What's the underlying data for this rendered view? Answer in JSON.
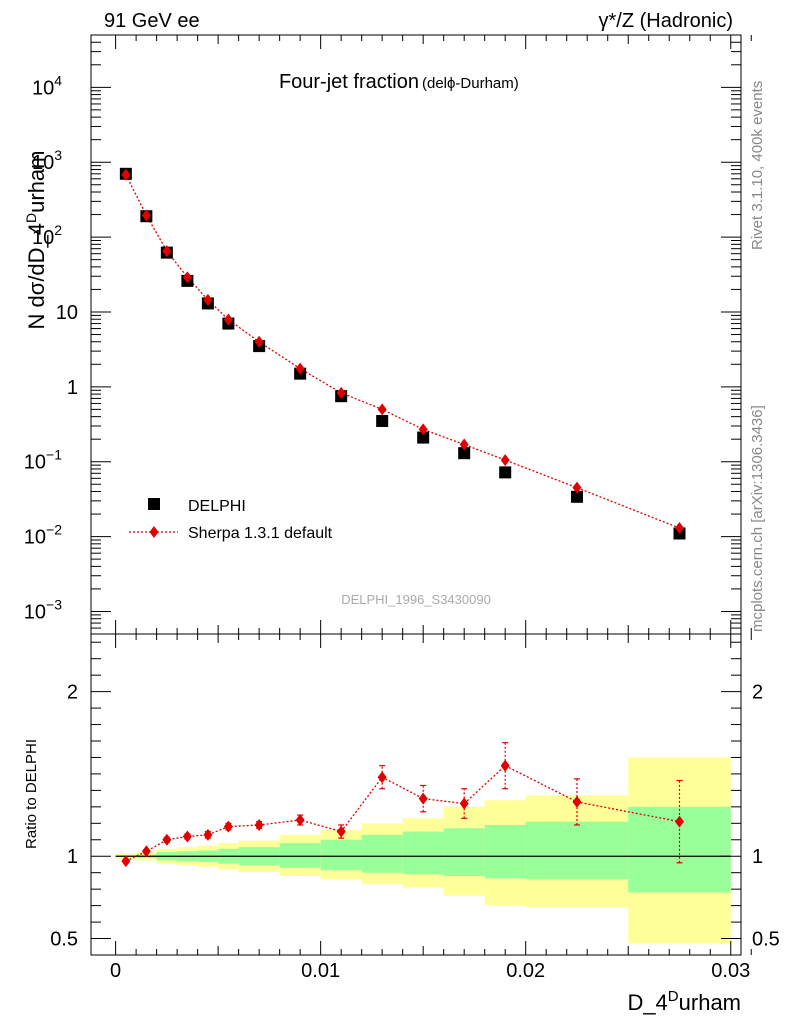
{
  "header": {
    "left": "91 GeV ee",
    "right": "γ*/Z (Hadronic)"
  },
  "side": {
    "rivet": "Rivet 3.1.10,  400k events",
    "mcplots": "mcplots.cern.ch [arXiv:1306.3436]"
  },
  "colors": {
    "data": "#000000",
    "mc": "#e00000",
    "band_inner": "#99ff99",
    "band_outer": "#ffff99"
  },
  "chart_data": [
    {
      "type": "scatter",
      "id": "main",
      "title": "Four-jet fraction",
      "title_suffix": "(delϕ-Durham)",
      "watermark": "DELPHI_1996_S3430090",
      "ylabel": "N dσ/dD_4^Durham",
      "yscale": "log",
      "ylim": [
        0.0005,
        50000
      ],
      "yticks": [
        {
          "v": 10000,
          "base": "10",
          "exp": "4"
        },
        {
          "v": 1000,
          "base": "10",
          "exp": "3"
        },
        {
          "v": 100,
          "base": "10",
          "exp": "2"
        },
        {
          "v": 10,
          "base": "10",
          "exp": ""
        },
        {
          "v": 1,
          "base": "1",
          "exp": ""
        },
        {
          "v": 0.1,
          "base": "10",
          "exp": "−1"
        },
        {
          "v": 0.01,
          "base": "10",
          "exp": "−2"
        },
        {
          "v": 0.001,
          "base": "10",
          "exp": "−3"
        }
      ],
      "xlim": [
        -0.0012,
        0.0305
      ],
      "x": [
        0.0005,
        0.0015,
        0.0025,
        0.0035,
        0.0045,
        0.0055,
        0.007,
        0.009,
        0.011,
        0.013,
        0.015,
        0.017,
        0.019,
        0.0225,
        0.0275
      ],
      "x_edges": [
        0,
        0.001,
        0.002,
        0.003,
        0.004,
        0.005,
        0.006,
        0.008,
        0.01,
        0.012,
        0.014,
        0.016,
        0.018,
        0.02,
        0.025,
        0.03
      ],
      "series": [
        {
          "name": "DELPHI",
          "marker": "square",
          "values": [
            700,
            190,
            62,
            26,
            13,
            7.0,
            3.5,
            1.5,
            0.75,
            0.35,
            0.21,
            0.13,
            0.072,
            0.034,
            0.011
          ]
        },
        {
          "name": "Sherpa 1.3.1 default",
          "marker": "diamond",
          "line": "dotted",
          "values": [
            680,
            195,
            65,
            29,
            14.5,
            7.9,
            4.0,
            1.75,
            0.83,
            0.5,
            0.27,
            0.17,
            0.105,
            0.045,
            0.013
          ]
        }
      ],
      "legend": [
        {
          "label": "DELPHI"
        },
        {
          "label": "Sherpa 1.3.1 default"
        }
      ]
    },
    {
      "type": "ratio",
      "id": "ratio",
      "ylabel": "Ratio to DELPHI",
      "xlabel": "D_4^Durham",
      "xlabel_base": "D_4",
      "xlabel_sup": "D",
      "xlabel_tail": "urham",
      "ylim": [
        0.4,
        2.35
      ],
      "yticks": [
        {
          "v": 2,
          "label": "2"
        },
        {
          "v": 1,
          "label": "1"
        },
        {
          "v": 0.5,
          "label": "0.5"
        }
      ],
      "xticks": [
        {
          "v": 0,
          "label": "0"
        },
        {
          "v": 0.01,
          "label": "0.01"
        },
        {
          "v": 0.02,
          "label": "0.02"
        },
        {
          "v": 0.03,
          "label": "0.03"
        }
      ],
      "band_inner": [
        [
          0.995,
          1.005
        ],
        [
          0.99,
          1.01
        ],
        [
          0.975,
          1.025
        ],
        [
          0.97,
          1.03
        ],
        [
          0.965,
          1.035
        ],
        [
          0.955,
          1.045
        ],
        [
          0.945,
          1.055
        ],
        [
          0.93,
          1.08
        ],
        [
          0.915,
          1.1
        ],
        [
          0.9,
          1.13
        ],
        [
          0.89,
          1.15
        ],
        [
          0.88,
          1.17
        ],
        [
          0.865,
          1.19
        ],
        [
          0.86,
          1.21
        ],
        [
          0.78,
          1.3
        ],
        [
          0.78,
          1.3
        ]
      ],
      "band_outer": [
        [
          0.985,
          1.015
        ],
        [
          0.975,
          1.025
        ],
        [
          0.955,
          1.045
        ],
        [
          0.945,
          1.055
        ],
        [
          0.935,
          1.065
        ],
        [
          0.92,
          1.08
        ],
        [
          0.905,
          1.095
        ],
        [
          0.88,
          1.13
        ],
        [
          0.86,
          1.16
        ],
        [
          0.83,
          1.2
        ],
        [
          0.81,
          1.23
        ],
        [
          0.76,
          1.3
        ],
        [
          0.7,
          1.34
        ],
        [
          0.69,
          1.37
        ],
        [
          0.47,
          1.6
        ],
        [
          0.47,
          1.6
        ]
      ],
      "values": [
        0.97,
        1.03,
        1.1,
        1.12,
        1.13,
        1.18,
        1.19,
        1.22,
        1.15,
        1.48,
        1.35,
        1.32,
        1.55,
        1.33,
        1.21
      ],
      "errors": [
        0.01,
        0.01,
        0.015,
        0.015,
        0.02,
        0.02,
        0.02,
        0.03,
        0.04,
        0.07,
        0.08,
        0.09,
        0.14,
        0.14,
        0.25
      ]
    }
  ]
}
